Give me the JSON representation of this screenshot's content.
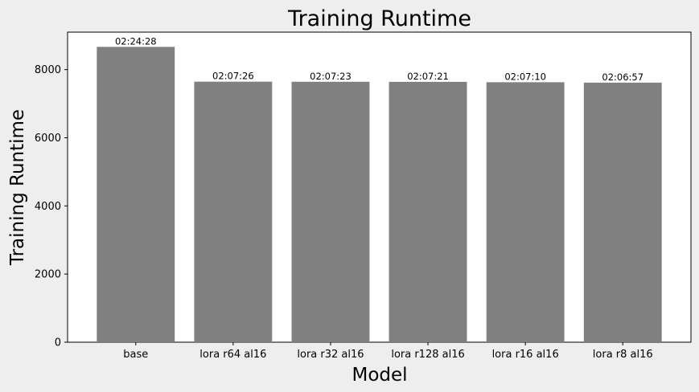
{
  "chart_data": {
    "type": "bar",
    "title": "Training Runtime",
    "xlabel": "Model",
    "ylabel": "Training Runtime",
    "categories": [
      "base",
      "lora r64 al16",
      "lora r32 al16",
      "lora r128 al16",
      "lora r16 al16",
      "lora r8 al16"
    ],
    "values": [
      8668,
      7646,
      7643,
      7641,
      7630,
      7617
    ],
    "value_labels": [
      "02:24:28",
      "02:07:26",
      "02:07:23",
      "02:07:21",
      "02:07:10",
      "02:06:57"
    ],
    "yticks": [
      0,
      2000,
      4000,
      6000,
      8000
    ],
    "ylim": [
      0,
      9100
    ],
    "bar_color": "#808080",
    "plot_background": "#ffffff",
    "figure_background": "#eeeeee",
    "grid": false,
    "legend": "none"
  }
}
